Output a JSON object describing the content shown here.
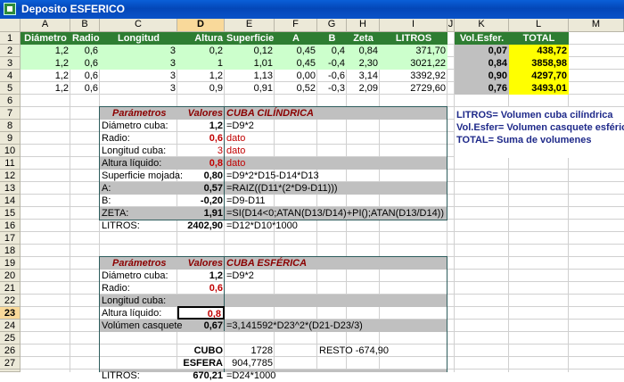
{
  "window": {
    "title": "Deposito ESFERICO"
  },
  "columns": [
    "A",
    "B",
    "C",
    "D",
    "E",
    "F",
    "G",
    "H",
    "I",
    "J",
    "K",
    "L",
    "M"
  ],
  "rows": [
    "1",
    "2",
    "3",
    "4",
    "5",
    "6",
    "7",
    "8",
    "9",
    "10",
    "11",
    "12",
    "13",
    "14",
    "15",
    "16",
    "17",
    "18",
    "19",
    "20",
    "21",
    "22",
    "23",
    "24",
    "25",
    "26",
    "27",
    "28"
  ],
  "header_row": {
    "A": "Diámetro",
    "B": "Radio",
    "C": "Longitud",
    "D": "Altura",
    "E": "Superficie",
    "F": "A",
    "G": "B",
    "H": "Zeta",
    "I": "LITROS",
    "K": "Vol.Esfer.",
    "L": "TOTAL"
  },
  "data_rows": [
    {
      "A": "1,2",
      "B": "0,6",
      "C": "3",
      "D": "0,2",
      "E": "0,12",
      "F": "0,45",
      "G": "0,4",
      "H": "0,84",
      "I": "371,70",
      "K": "0,07",
      "L": "438,72"
    },
    {
      "A": "1,2",
      "B": "0,6",
      "C": "3",
      "D": "1",
      "E": "1,01",
      "F": "0,45",
      "G": "-0,4",
      "H": "2,30",
      "I": "3021,22",
      "K": "0,84",
      "L": "3858,98"
    },
    {
      "A": "1,2",
      "B": "0,6",
      "C": "3",
      "D": "1,2",
      "E": "1,13",
      "F": "0,00",
      "G": "-0,6",
      "H": "3,14",
      "I": "3392,92",
      "K": "0,90",
      "L": "4297,70"
    },
    {
      "A": "1,2",
      "B": "0,6",
      "C": "3",
      "D": "0,9",
      "E": "0,91",
      "F": "0,52",
      "G": "-0,3",
      "H": "2,09",
      "I": "2729,60",
      "K": "0,76",
      "L": "3493,01"
    }
  ],
  "cyl_table": {
    "h1": "Parámetros",
    "h2": "Valores",
    "h3": "CUBA CILÍNDRICA",
    "rows": [
      {
        "p": "Diámetro cuba:",
        "v": "1,2",
        "f": "=D9*2"
      },
      {
        "p": "Radio:",
        "v": "0,6",
        "f": "dato"
      },
      {
        "p": "Longitud cuba:",
        "v": "3",
        "f": "dato"
      },
      {
        "p": "Altura líquido:",
        "v": "0,8",
        "f": "dato"
      },
      {
        "p": "Superficie mojada:",
        "v": "0,80",
        "f": "=D9*2*D15-D14*D13"
      },
      {
        "p": "A:",
        "v": "0,57",
        "f": "=RAIZ((D11*(2*D9-D11)))"
      },
      {
        "p": "B:",
        "v": "-0,20",
        "f": "=D9-D11"
      },
      {
        "p": "ZETA:",
        "v": "1,91",
        "f": "=SI(D14<0;ATAN(D13/D14)+PI();ATAN(D13/D14))"
      },
      {
        "p": "LITROS:",
        "v": "2402,90",
        "f": "=D12*D10*1000"
      }
    ]
  },
  "legend": {
    "l1": "LITROS= Volumen cuba cilíndrica",
    "l2": "Vol.Esfer= Volumen casquete esférico",
    "l3": "TOTAL= Suma de volumenes"
  },
  "sph_table": {
    "h1": "Parámetros",
    "h2": "Valores",
    "h3": "CUBA ESFÉRICA",
    "r20": {
      "p": "Diámetro cuba:",
      "v": "1,2",
      "f": "=D9*2"
    },
    "r21": {
      "p": "Radio:",
      "v": "0,6"
    },
    "r22": {
      "p": "Longitud cuba:"
    },
    "r23": {
      "p": "Altura líquido:",
      "v": "0,8"
    },
    "r24": {
      "p": "Volúmen casquete",
      "v": "0,67",
      "f": "=3,141592*D23^2*(D21-D23/3)"
    },
    "r26": {
      "label": "CUBO",
      "v": "1728",
      "label2": "RESTO",
      "v2": "-674,90"
    },
    "r27": {
      "label": "ESFERA",
      "v": "904,7785"
    },
    "r28": {
      "p": "LITROS:",
      "v": "670,21",
      "f": "=D24*1000"
    }
  },
  "colors": {
    "green": "#ccffcc",
    "yellow": "#ffff00",
    "gray": "#c0c0c0",
    "darkgreen": "#2e7d32",
    "header_bg": "#ece9d8"
  }
}
